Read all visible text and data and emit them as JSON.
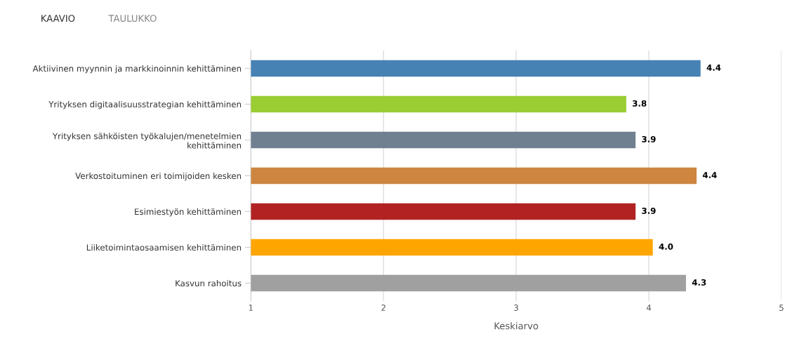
{
  "chart_data": {
    "type": "bar",
    "orientation": "horizontal",
    "categories": [
      "Aktiivinen myynnin ja markkinoinnin kehittäminen",
      "Yrityksen digitaalisuusstrategian kehittäminen",
      "Yrityksen sähköisten työkalujen/menetelmien\nkehittäminen",
      "Verkostoituminen eri toimijoiden kesken",
      "Esimiestyön kehittäminen",
      "Liiketoimintaosaamisen kehittäminen",
      "Kasvun rahoitus"
    ],
    "values": [
      4.39,
      3.83,
      3.9,
      4.36,
      3.9,
      4.03,
      4.28
    ],
    "value_labels": [
      "4.4",
      "3.8",
      "3.9",
      "4.4",
      "3.9",
      "4.0",
      "4.3"
    ],
    "colors": [
      "#4682b4",
      "#9acd32",
      "#708090",
      "#cd853f",
      "#b22222",
      "#ffa500",
      "#a0a0a0"
    ],
    "xlabel": "Keskiarvo",
    "xlim": [
      1,
      5
    ],
    "xticks": [
      1,
      2,
      3,
      4,
      5
    ],
    "grid": "x",
    "annotations": [
      "KAAVIO",
      "TAULUKKO"
    ]
  }
}
